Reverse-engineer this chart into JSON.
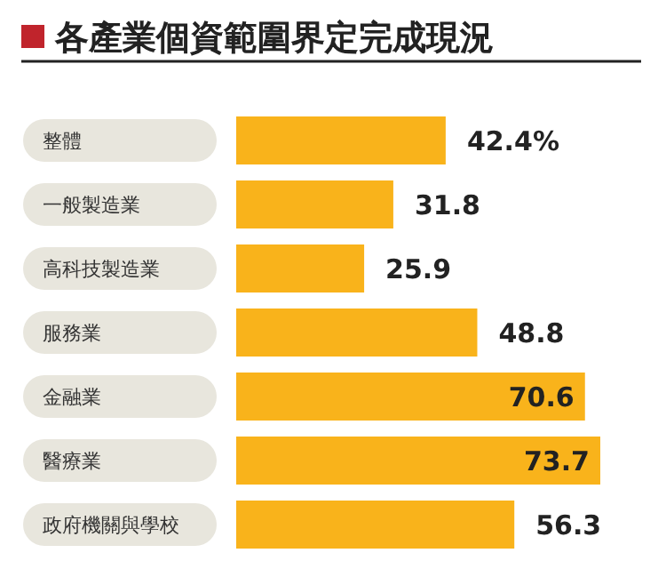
{
  "chart_data": {
    "type": "bar",
    "orientation": "horizontal",
    "title": "各產業個資範圍界定完成現況",
    "categories": [
      "整體",
      "一般製造業",
      "高科技製造業",
      "服務業",
      "金融業",
      "醫療業",
      "政府機關與學校"
    ],
    "values": [
      42.4,
      31.8,
      25.9,
      48.8,
      70.6,
      73.7,
      56.3
    ],
    "value_labels": [
      "42.4%",
      "31.8",
      "25.9",
      "48.8",
      "70.6",
      "73.7",
      "56.3"
    ],
    "color": "#f9b31b"
  }
}
